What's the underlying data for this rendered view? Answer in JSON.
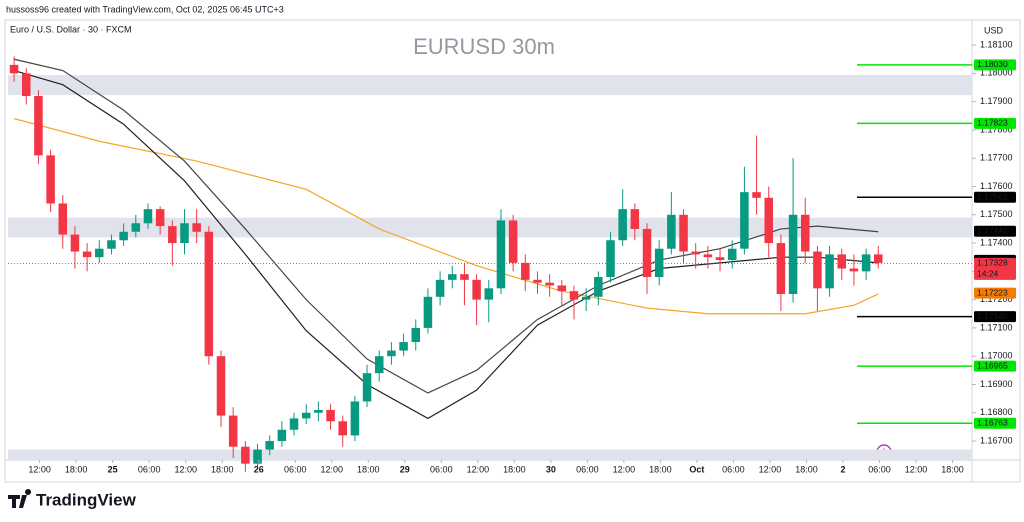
{
  "header": "hussoss96 created with TradingView.com, Oct 02, 2025 06:45 UTC+3",
  "brand": "TradingView",
  "chart_data": {
    "type": "candlestick",
    "title": "EURUSD 30m",
    "symbol": "Euro / U.S. Dollar · 30 · FXCM",
    "currency": "USD",
    "up_color": "#089981",
    "down_color": "#f23645",
    "ylim": [
      1.16633,
      1.18118
    ],
    "yticks": [
      {
        "value": 1.181,
        "label": "1.18100"
      },
      {
        "value": 1.18,
        "label": "1.18000"
      },
      {
        "value": 1.179,
        "label": "1.17900"
      },
      {
        "value": 1.178,
        "label": "1.17800"
      },
      {
        "value": 1.177,
        "label": "1.17700"
      },
      {
        "value": 1.176,
        "label": "1.17600"
      },
      {
        "value": 1.175,
        "label": "1.17500"
      },
      {
        "value": 1.174,
        "label": "1.17400"
      },
      {
        "value": 1.173,
        "label": "1.17300"
      },
      {
        "value": 1.172,
        "label": "1.17200"
      },
      {
        "value": 1.171,
        "label": "1.17100"
      },
      {
        "value": 1.17,
        "label": "1.17000"
      },
      {
        "value": 1.169,
        "label": "1.16900"
      },
      {
        "value": 1.168,
        "label": "1.16800"
      },
      {
        "value": 1.167,
        "label": "1.16700"
      }
    ],
    "xlim": [
      -0.5,
      78.7
    ],
    "xticks": [
      {
        "value": 2.1,
        "label": "12:00"
      },
      {
        "value": 5.1,
        "label": "18:00"
      },
      {
        "value": 8.1,
        "label": "25"
      },
      {
        "value": 11.1,
        "label": "06:00"
      },
      {
        "value": 14.1,
        "label": "12:00"
      },
      {
        "value": 17.1,
        "label": "18:00"
      },
      {
        "value": 20.1,
        "label": "26"
      },
      {
        "value": 23.1,
        "label": "06:00"
      },
      {
        "value": 26.1,
        "label": "12:00"
      },
      {
        "value": 29.1,
        "label": "18:00"
      },
      {
        "value": 32.1,
        "label": "29"
      },
      {
        "value": 35.1,
        "label": "06:00"
      },
      {
        "value": 38.1,
        "label": "12:00"
      },
      {
        "value": 41.1,
        "label": "18:00"
      },
      {
        "value": 44.1,
        "label": "30"
      },
      {
        "value": 47.1,
        "label": "06:00"
      },
      {
        "value": 50.1,
        "label": "12:00"
      },
      {
        "value": 53.1,
        "label": "18:00"
      },
      {
        "value": 56.1,
        "label": "Oct"
      },
      {
        "value": 59.1,
        "label": "06:00"
      },
      {
        "value": 62.1,
        "label": "12:00"
      },
      {
        "value": 65.1,
        "label": "18:00"
      },
      {
        "value": 68.1,
        "label": "2"
      },
      {
        "value": 71.1,
        "label": "06:00"
      },
      {
        "value": 74.1,
        "label": "12:00"
      },
      {
        "value": 77.1,
        "label": "18:00"
      }
    ],
    "ohlc": [
      [
        1.1803,
        1.1806,
        1.1797,
        1.18
      ],
      [
        1.18,
        1.1802,
        1.1789,
        1.1792
      ],
      [
        1.1792,
        1.1794,
        1.1768,
        1.1771
      ],
      [
        1.1771,
        1.1773,
        1.1751,
        1.1754
      ],
      [
        1.1754,
        1.1757,
        1.1738,
        1.1743
      ],
      [
        1.1743,
        1.1746,
        1.1731,
        1.1737
      ],
      [
        1.1737,
        1.174,
        1.173,
        1.1735
      ],
      [
        1.1735,
        1.1741,
        1.1733,
        1.1738
      ],
      [
        1.1738,
        1.1743,
        1.1736,
        1.1741
      ],
      [
        1.1741,
        1.1747,
        1.1739,
        1.1744
      ],
      [
        1.1744,
        1.175,
        1.1742,
        1.1747
      ],
      [
        1.1747,
        1.1754,
        1.1745,
        1.1752
      ],
      [
        1.1752,
        1.1753,
        1.1743,
        1.1746
      ],
      [
        1.1746,
        1.1748,
        1.1732,
        1.174
      ],
      [
        1.174,
        1.1752,
        1.1736,
        1.1747
      ],
      [
        1.1747,
        1.1752,
        1.174,
        1.1744
      ],
      [
        1.1744,
        1.1746,
        1.1697,
        1.17
      ],
      [
        1.17,
        1.1702,
        1.1675,
        1.1679
      ],
      [
        1.1679,
        1.1682,
        1.1664,
        1.1668
      ],
      [
        1.1668,
        1.167,
        1.1659,
        1.1662
      ],
      [
        1.1662,
        1.1669,
        1.166,
        1.1667
      ],
      [
        1.1667,
        1.1672,
        1.1665,
        1.167
      ],
      [
        1.167,
        1.1677,
        1.1668,
        1.1674
      ],
      [
        1.1674,
        1.168,
        1.1672,
        1.1678
      ],
      [
        1.1678,
        1.1683,
        1.1676,
        1.168
      ],
      [
        1.168,
        1.1684,
        1.1677,
        1.1681
      ],
      [
        1.1681,
        1.1683,
        1.1674,
        1.1677
      ],
      [
        1.1677,
        1.1679,
        1.1668,
        1.1672
      ],
      [
        1.1672,
        1.1686,
        1.167,
        1.1684
      ],
      [
        1.1684,
        1.1697,
        1.1682,
        1.1694
      ],
      [
        1.1694,
        1.1702,
        1.1691,
        1.17
      ],
      [
        1.17,
        1.1705,
        1.1697,
        1.1702
      ],
      [
        1.1702,
        1.1708,
        1.17,
        1.1705
      ],
      [
        1.1705,
        1.1713,
        1.1702,
        1.171
      ],
      [
        1.171,
        1.1724,
        1.1708,
        1.1721
      ],
      [
        1.1721,
        1.173,
        1.1718,
        1.1727
      ],
      [
        1.1727,
        1.1732,
        1.1724,
        1.1729
      ],
      [
        1.1729,
        1.1733,
        1.1718,
        1.1727
      ],
      [
        1.1727,
        1.1729,
        1.1711,
        1.172
      ],
      [
        1.172,
        1.1727,
        1.1712,
        1.1724
      ],
      [
        1.1724,
        1.1752,
        1.1722,
        1.1748
      ],
      [
        1.1748,
        1.175,
        1.173,
        1.1733
      ],
      [
        1.1733,
        1.1736,
        1.1723,
        1.1727
      ],
      [
        1.1727,
        1.173,
        1.1722,
        1.1726
      ],
      [
        1.1726,
        1.1729,
        1.1721,
        1.1725
      ],
      [
        1.1725,
        1.1727,
        1.1718,
        1.1723
      ],
      [
        1.1723,
        1.1725,
        1.1713,
        1.172
      ],
      [
        1.172,
        1.1724,
        1.1716,
        1.1721
      ],
      [
        1.1721,
        1.173,
        1.1718,
        1.1728
      ],
      [
        1.1728,
        1.1744,
        1.1726,
        1.1741
      ],
      [
        1.1741,
        1.1759,
        1.1739,
        1.1752
      ],
      [
        1.1752,
        1.1754,
        1.1741,
        1.1745
      ],
      [
        1.1745,
        1.1747,
        1.1722,
        1.1728
      ],
      [
        1.1728,
        1.1741,
        1.1725,
        1.1738
      ],
      [
        1.1738,
        1.1758,
        1.1736,
        1.175
      ],
      [
        1.175,
        1.1752,
        1.1733,
        1.1737
      ],
      [
        1.1737,
        1.174,
        1.1731,
        1.1736
      ],
      [
        1.1736,
        1.1739,
        1.1731,
        1.1735
      ],
      [
        1.1735,
        1.1738,
        1.173,
        1.1734
      ],
      [
        1.1734,
        1.1741,
        1.1731,
        1.1738
      ],
      [
        1.1738,
        1.1767,
        1.1736,
        1.1758
      ],
      [
        1.1758,
        1.1778,
        1.175,
        1.1756
      ],
      [
        1.1756,
        1.176,
        1.1735,
        1.174
      ],
      [
        1.174,
        1.1743,
        1.1716,
        1.1722
      ],
      [
        1.1722,
        1.177,
        1.1719,
        1.175
      ],
      [
        1.175,
        1.1756,
        1.1733,
        1.1737
      ],
      [
        1.1737,
        1.1739,
        1.1716,
        1.1724
      ],
      [
        1.1724,
        1.1739,
        1.1721,
        1.1736
      ],
      [
        1.1736,
        1.1738,
        1.1727,
        1.1731
      ],
      [
        1.1731,
        1.1736,
        1.1725,
        1.173
      ],
      [
        1.173,
        1.1738,
        1.1727,
        1.1736
      ],
      [
        1.1736,
        1.1739,
        1.1731,
        1.1733
      ]
    ],
    "lines": [
      {
        "color": "#f5a623",
        "x": [
          0,
          7,
          15,
          24,
          30,
          38,
          45,
          52,
          57,
          65,
          69,
          71
        ],
        "values": [
          1.1784,
          1.1776,
          1.1769,
          1.1759,
          1.1745,
          1.1732,
          1.1723,
          1.1717,
          1.1715,
          1.1715,
          1.1718,
          1.1722
        ]
      },
      {
        "color": "#444444",
        "x": [
          0,
          4,
          9,
          14,
          19,
          24,
          29,
          34,
          38,
          43,
          48,
          53,
          58,
          63,
          66,
          71
        ],
        "values": [
          1.1805,
          1.1801,
          1.1787,
          1.1769,
          1.1745,
          1.172,
          1.1699,
          1.1687,
          1.1695,
          1.1713,
          1.1725,
          1.1734,
          1.1738,
          1.1745,
          1.1746,
          1.1744
        ]
      },
      {
        "color": "#222222",
        "x": [
          0,
          4,
          9,
          14,
          19,
          24,
          29,
          34,
          38,
          43,
          48,
          53,
          58,
          63,
          66,
          71
        ],
        "values": [
          1.1801,
          1.1796,
          1.1782,
          1.1762,
          1.1736,
          1.1709,
          1.169,
          1.1678,
          1.1688,
          1.1711,
          1.1723,
          1.1731,
          1.1733,
          1.1735,
          1.1735,
          1.1733
        ]
      }
    ],
    "zones": [
      [
        1.17994,
        1.17923
      ],
      [
        1.1749,
        1.1742
      ],
      [
        1.1667,
        1.1663
      ]
    ],
    "zone_color": "#e0e3eb",
    "price_labels": [
      {
        "value": 1.1803,
        "label": "1.18030",
        "color": "#00e600",
        "line": true
      },
      {
        "value": 1.17823,
        "label": "1.17823",
        "color": "#00e600",
        "line": true
      },
      {
        "value": 1.17562,
        "label": "1.17562",
        "color": "#000000",
        "line": true
      },
      {
        "value": 1.17442,
        "label": "1.17442",
        "color": "#000000",
        "line": false
      },
      {
        "value": 1.17339,
        "label": "1.17339",
        "color": "#000000",
        "line": false
      },
      {
        "value": 1.17328,
        "label": "1.17328",
        "color": "#f23645",
        "line": false
      },
      {
        "value": 1.17223,
        "label": "1.17223",
        "color": "#f57c00",
        "line": false
      },
      {
        "value": 1.1714,
        "label": "1.17140",
        "color": "#000000",
        "line": true
      },
      {
        "value": 1.16965,
        "label": "1.16965",
        "color": "#00e600",
        "line": true
      },
      {
        "value": 1.16763,
        "label": "1.16763",
        "color": "#00e600",
        "line": true
      }
    ],
    "current_price_index": 5,
    "countdown": "14:24"
  }
}
